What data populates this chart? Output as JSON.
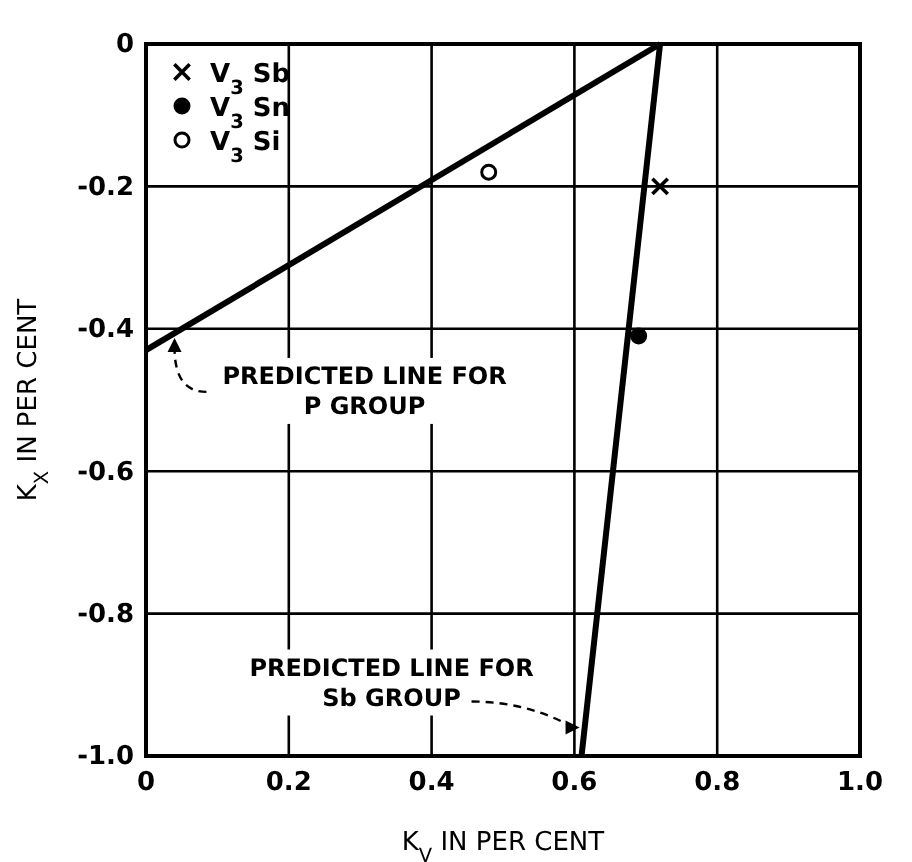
{
  "chart_data": {
    "type": "scatter",
    "xlabel": "K$_{V}$ IN PER CENT",
    "ylabel": "K$_{X}$ IN PER CENT",
    "xlim": [
      0,
      1
    ],
    "ylim": [
      -1,
      0
    ],
    "xticks": [
      0,
      0.2,
      0.4,
      0.6,
      0.8,
      {
        "value": 1,
        "label": "1.0"
      }
    ],
    "yticks": [
      {
        "value": -1,
        "label": "-1.0"
      },
      -0.8,
      -0.6,
      -0.4,
      -0.2,
      0
    ],
    "grid": true,
    "legend": "top left",
    "series": [
      {
        "type": "line",
        "color": "#000000",
        "x": [
          0,
          0.72
        ],
        "values": [
          -0.43,
          0
        ]
      },
      {
        "type": "line",
        "color": "#000000",
        "x": [
          0.72,
          0.61
        ],
        "values": [
          0,
          -1.0
        ]
      },
      {
        "name": "V$_{3}$ Sb",
        "color": "#000000",
        "marker": "cross",
        "x": [
          0.72
        ],
        "values": [
          -0.2
        ]
      },
      {
        "name": "V$_{3}$ Sn",
        "color": "#000000",
        "marker": "circle",
        "x": [
          0.69
        ],
        "values": [
          -0.41
        ]
      },
      {
        "name": "V$_{3}$ Si",
        "color": "#ffffff",
        "marker": "circle",
        "x": [
          0.48
        ],
        "values": [
          -0.18
        ]
      }
    ],
    "annotations": [
      {
        "text": "PREDICTED LINE FOR\nP GROUP",
        "x": 0.04,
        "y": -0.41
      },
      {
        "text": "PREDICTED LINE FOR\nSb GROUP",
        "x": 0.61,
        "y": -0.96
      }
    ]
  }
}
